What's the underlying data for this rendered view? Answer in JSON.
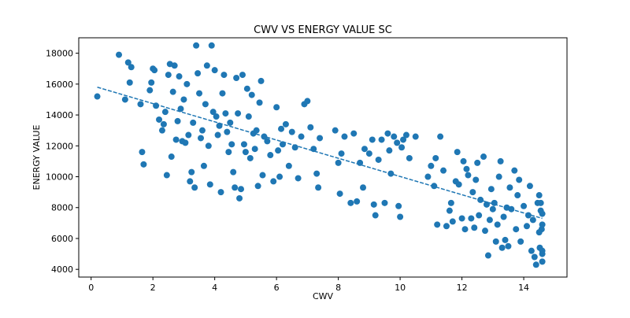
{
  "chart_data": {
    "type": "scatter",
    "title": "CWV VS ENERGY VALUE SC",
    "xlabel": "CWV",
    "ylabel": "ENERGY VALUE",
    "xlim": [
      -0.4,
      15.4
    ],
    "ylim": [
      3500,
      19000
    ],
    "grid": false,
    "x_ticks": [
      0,
      2,
      4,
      6,
      8,
      10,
      12,
      14
    ],
    "y_ticks": [
      4000,
      6000,
      8000,
      10000,
      12000,
      14000,
      16000,
      18000
    ],
    "colors": {
      "points": "#1f77b4",
      "trend": "#1f77b4"
    },
    "trend_line": {
      "style": "dashed",
      "x": [
        0.2,
        14.6
      ],
      "y": [
        15800,
        7300
      ]
    },
    "series": [
      {
        "points": [
          [
            0.2,
            15200
          ],
          [
            0.9,
            17900
          ],
          [
            1.1,
            15000
          ],
          [
            1.2,
            17400
          ],
          [
            1.25,
            16100
          ],
          [
            1.3,
            17100
          ],
          [
            1.6,
            14700
          ],
          [
            1.65,
            11600
          ],
          [
            1.7,
            10800
          ],
          [
            1.9,
            15600
          ],
          [
            1.95,
            16100
          ],
          [
            2.0,
            17000
          ],
          [
            2.05,
            16900
          ],
          [
            2.1,
            14600
          ],
          [
            2.2,
            13700
          ],
          [
            2.3,
            13000
          ],
          [
            2.35,
            13400
          ],
          [
            2.4,
            14200
          ],
          [
            2.45,
            10100
          ],
          [
            2.5,
            16600
          ],
          [
            2.55,
            17300
          ],
          [
            2.6,
            11300
          ],
          [
            2.65,
            15500
          ],
          [
            2.7,
            17200
          ],
          [
            2.75,
            12400
          ],
          [
            2.8,
            13600
          ],
          [
            2.85,
            16500
          ],
          [
            2.9,
            14400
          ],
          [
            2.95,
            12300
          ],
          [
            3.0,
            15000
          ],
          [
            3.05,
            12200
          ],
          [
            3.1,
            16000
          ],
          [
            3.15,
            12700
          ],
          [
            3.2,
            9700
          ],
          [
            3.25,
            10300
          ],
          [
            3.3,
            13500
          ],
          [
            3.35,
            9300
          ],
          [
            3.4,
            18500
          ],
          [
            3.45,
            16700
          ],
          [
            3.5,
            15400
          ],
          [
            3.55,
            12500
          ],
          [
            3.6,
            13000
          ],
          [
            3.65,
            10700
          ],
          [
            3.7,
            14700
          ],
          [
            3.75,
            17200
          ],
          [
            3.8,
            12000
          ],
          [
            3.85,
            9500
          ],
          [
            3.9,
            18500
          ],
          [
            3.95,
            14200
          ],
          [
            4.0,
            16900
          ],
          [
            4.05,
            13900
          ],
          [
            4.1,
            12700
          ],
          [
            4.15,
            13300
          ],
          [
            4.2,
            9000
          ],
          [
            4.25,
            15400
          ],
          [
            4.3,
            16600
          ],
          [
            4.35,
            14100
          ],
          [
            4.4,
            12900
          ],
          [
            4.45,
            11600
          ],
          [
            4.5,
            13500
          ],
          [
            4.55,
            12100
          ],
          [
            4.6,
            10300
          ],
          [
            4.65,
            9300
          ],
          [
            4.7,
            16400
          ],
          [
            4.75,
            14100
          ],
          [
            4.8,
            8600
          ],
          [
            4.85,
            9200
          ],
          [
            4.9,
            16600
          ],
          [
            4.95,
            12100
          ],
          [
            5.0,
            11600
          ],
          [
            5.05,
            15700
          ],
          [
            5.1,
            13900
          ],
          [
            5.15,
            11200
          ],
          [
            5.2,
            15300
          ],
          [
            5.25,
            12800
          ],
          [
            5.3,
            11800
          ],
          [
            5.35,
            13000
          ],
          [
            5.4,
            9400
          ],
          [
            5.45,
            14800
          ],
          [
            5.5,
            16200
          ],
          [
            5.55,
            10100
          ],
          [
            5.6,
            12600
          ],
          [
            5.7,
            12300
          ],
          [
            5.8,
            11400
          ],
          [
            5.9,
            9700
          ],
          [
            6.0,
            14500
          ],
          [
            6.05,
            11700
          ],
          [
            6.1,
            10000
          ],
          [
            6.15,
            13100
          ],
          [
            6.2,
            12100
          ],
          [
            6.3,
            13400
          ],
          [
            6.4,
            10700
          ],
          [
            6.5,
            12900
          ],
          [
            6.6,
            11900
          ],
          [
            6.7,
            9900
          ],
          [
            6.8,
            12600
          ],
          [
            6.9,
            14700
          ],
          [
            7.0,
            14900
          ],
          [
            7.1,
            13200
          ],
          [
            7.2,
            11800
          ],
          [
            7.3,
            10200
          ],
          [
            7.35,
            9300
          ],
          [
            7.4,
            12500
          ],
          [
            7.9,
            13000
          ],
          [
            8.0,
            10900
          ],
          [
            8.05,
            8900
          ],
          [
            8.1,
            11500
          ],
          [
            8.2,
            12600
          ],
          [
            8.4,
            8300
          ],
          [
            8.5,
            12800
          ],
          [
            8.6,
            8400
          ],
          [
            8.7,
            10900
          ],
          [
            8.8,
            9300
          ],
          [
            8.85,
            11800
          ],
          [
            9.0,
            11500
          ],
          [
            9.1,
            12400
          ],
          [
            9.15,
            8200
          ],
          [
            9.2,
            7500
          ],
          [
            9.3,
            11100
          ],
          [
            9.4,
            12400
          ],
          [
            9.5,
            8300
          ],
          [
            9.6,
            12800
          ],
          [
            9.65,
            11700
          ],
          [
            9.7,
            10200
          ],
          [
            9.8,
            12600
          ],
          [
            9.9,
            12200
          ],
          [
            9.95,
            8100
          ],
          [
            10.0,
            7400
          ],
          [
            10.05,
            11900
          ],
          [
            10.1,
            12400
          ],
          [
            10.2,
            12700
          ],
          [
            10.3,
            11200
          ],
          [
            10.5,
            12600
          ],
          [
            10.9,
            10000
          ],
          [
            11.0,
            10700
          ],
          [
            11.1,
            9400
          ],
          [
            11.15,
            11200
          ],
          [
            11.2,
            6900
          ],
          [
            11.3,
            12600
          ],
          [
            11.4,
            10400
          ],
          [
            11.5,
            6800
          ],
          [
            11.6,
            7800
          ],
          [
            11.65,
            8300
          ],
          [
            11.7,
            7100
          ],
          [
            11.8,
            9700
          ],
          [
            11.85,
            11600
          ],
          [
            11.9,
            9500
          ],
          [
            12.0,
            7300
          ],
          [
            12.05,
            11000
          ],
          [
            12.1,
            6600
          ],
          [
            12.15,
            10500
          ],
          [
            12.2,
            10100
          ],
          [
            12.3,
            7300
          ],
          [
            12.35,
            9000
          ],
          [
            12.4,
            6700
          ],
          [
            12.45,
            9800
          ],
          [
            12.5,
            10900
          ],
          [
            12.55,
            7500
          ],
          [
            12.6,
            8500
          ],
          [
            12.7,
            11300
          ],
          [
            12.75,
            6500
          ],
          [
            12.8,
            8200
          ],
          [
            12.85,
            4900
          ],
          [
            12.9,
            7200
          ],
          [
            12.95,
            9200
          ],
          [
            13.0,
            7900
          ],
          [
            13.05,
            8300
          ],
          [
            13.1,
            5800
          ],
          [
            13.15,
            6900
          ],
          [
            13.2,
            10000
          ],
          [
            13.25,
            11000
          ],
          [
            13.3,
            5400
          ],
          [
            13.35,
            7400
          ],
          [
            13.4,
            5900
          ],
          [
            13.45,
            8000
          ],
          [
            13.5,
            5500
          ],
          [
            13.55,
            9300
          ],
          [
            13.6,
            7900
          ],
          [
            13.7,
            10400
          ],
          [
            13.75,
            6600
          ],
          [
            13.8,
            8800
          ],
          [
            13.85,
            9800
          ],
          [
            13.9,
            5800
          ],
          [
            14.0,
            8100
          ],
          [
            14.1,
            6800
          ],
          [
            14.15,
            7500
          ],
          [
            14.2,
            9400
          ],
          [
            14.25,
            5200
          ],
          [
            14.3,
            7200
          ],
          [
            14.35,
            4800
          ],
          [
            14.4,
            4300
          ],
          [
            14.45,
            8300
          ],
          [
            14.5,
            8800
          ],
          [
            14.52,
            5400
          ],
          [
            14.55,
            7800
          ],
          [
            14.58,
            6600
          ],
          [
            14.6,
            4500
          ],
          [
            14.6,
            6900
          ],
          [
            14.6,
            7600
          ],
          [
            14.6,
            5000
          ],
          [
            14.55,
            8300
          ],
          [
            14.6,
            5200
          ],
          [
            14.5,
            6400
          ]
        ]
      }
    ]
  }
}
